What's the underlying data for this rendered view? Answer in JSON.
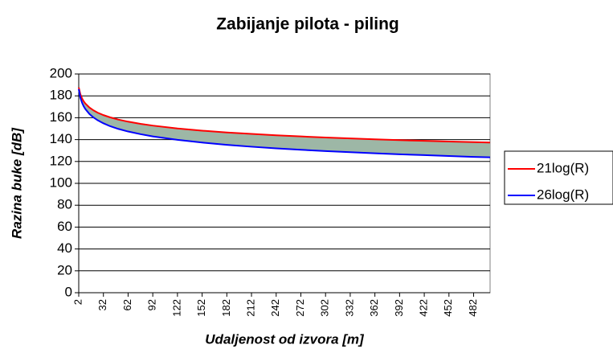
{
  "chart_data": {
    "type": "line",
    "title": "Zabijanje pilota - piling",
    "x_label": "Udaljenost od izvora [m]",
    "y_label": "Razina buke [dB]",
    "x": [
      2,
      4,
      6,
      8,
      10,
      15,
      20,
      25,
      32,
      40,
      50,
      62,
      77,
      92,
      122,
      152,
      182,
      212,
      242,
      272,
      302,
      332,
      362,
      392,
      422,
      452,
      482,
      502
    ],
    "series": [
      {
        "name": "21log(R)",
        "color": "#ff0000",
        "values": [
          187.7,
          181.4,
          177.7,
          175.0,
          173.0,
          169.3,
          166.7,
          164.6,
          162.4,
          160.4,
          158.3,
          156.4,
          154.4,
          152.8,
          150.2,
          148.2,
          146.5,
          145.2,
          143.9,
          142.9,
          141.9,
          141.1,
          140.3,
          139.5,
          138.9,
          138.2,
          137.7,
          137.3
        ]
      },
      {
        "name": "26log(R)",
        "color": "#0000ff",
        "values": [
          186.2,
          178.3,
          173.8,
          170.5,
          168.0,
          163.4,
          160.2,
          157.7,
          154.9,
          152.3,
          149.8,
          147.4,
          145.0,
          142.9,
          139.8,
          137.3,
          135.2,
          133.5,
          132.0,
          130.7,
          129.5,
          128.5,
          127.5,
          126.6,
          125.8,
          125.0,
          124.2,
          123.8
        ]
      }
    ],
    "fill_between_color": "#9db7a6",
    "xlim": [
      2,
      502
    ],
    "xticks": [
      2,
      32,
      62,
      92,
      122,
      152,
      182,
      212,
      242,
      272,
      302,
      332,
      362,
      392,
      422,
      452,
      482
    ],
    "ylim": [
      0,
      200
    ],
    "yticks": [
      0,
      20,
      40,
      60,
      80,
      100,
      120,
      140,
      160,
      180,
      200
    ],
    "grid": true,
    "legend": "right"
  }
}
